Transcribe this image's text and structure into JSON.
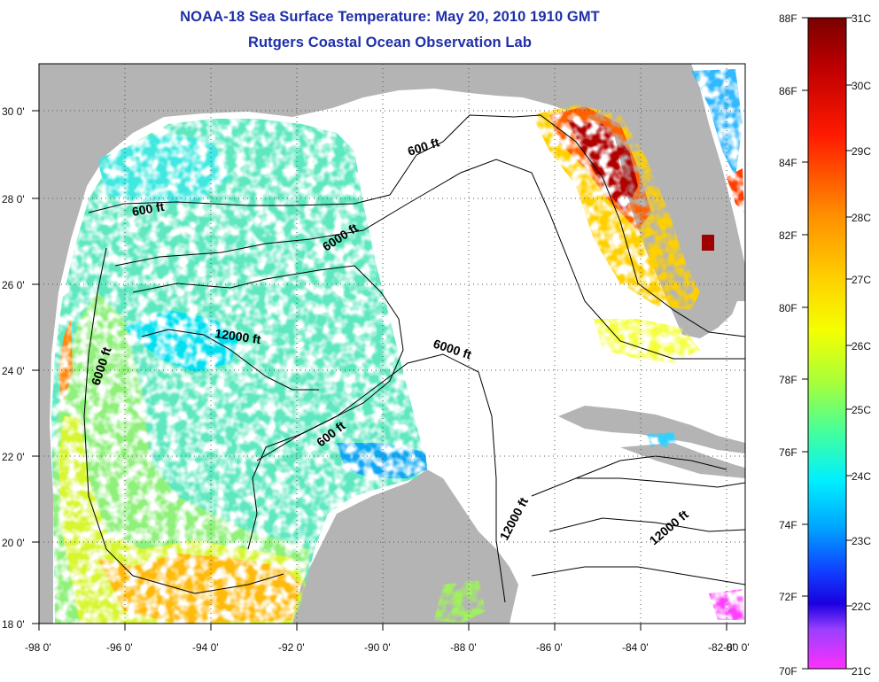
{
  "title_line1": "NOAA-18 Sea Surface Temperature:  May 20, 2010 1910 GMT",
  "title_line2": "Rutgers Coastal Ocean Observation Lab",
  "x_ticks": [
    "-98 0'",
    "-96 0'",
    "-94 0'",
    "-92 0'",
    "-90 0'",
    "-88 0'",
    "-86 0'",
    "-84 0'",
    "-82 0'",
    "-80 0'"
  ],
  "y_ticks": [
    "18 0'",
    "20 0'",
    "22 0'",
    "24 0'",
    "26 0'",
    "28 0'",
    "30 0'"
  ],
  "contour_labels": [
    "600 ft",
    "600 ft",
    "600 ft",
    "6000 ft",
    "6000 ft",
    "6000 ft",
    "12000 ft",
    "12000 ft",
    "12000 ft"
  ],
  "colorbar": {
    "f_labels": [
      "88F",
      "86F",
      "84F",
      "82F",
      "80F",
      "78F",
      "76F",
      "74F",
      "72F",
      "70F"
    ],
    "c_labels": [
      "31C",
      "30C",
      "29C",
      "28C",
      "27C",
      "26C",
      "25C",
      "24C",
      "23C",
      "22C",
      "21C"
    ]
  },
  "colors": {
    "land": "#b4b4b4",
    "no_data": "#ffffff",
    "title": "#1f2fa8"
  }
}
